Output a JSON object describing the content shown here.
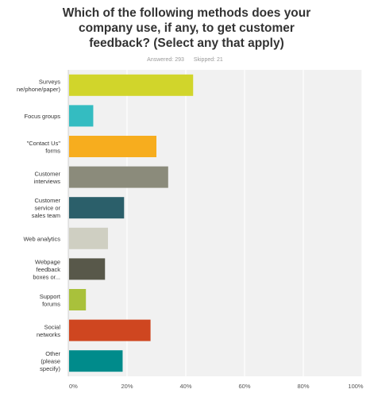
{
  "question": "Which of the following methods does your company use, if any, to get customer feedback? (Select any that apply)",
  "stats": {
    "answered": "Answered: 293",
    "skipped": "Skipped: 21"
  },
  "chart_data": {
    "type": "bar",
    "orientation": "horizontal",
    "title": "Which of the following methods does your company use, if any, to get customer feedback? (Select any that apply)",
    "categories": [
      [
        "Surveys",
        "ne/phone/paper)"
      ],
      [
        "Focus groups"
      ],
      [
        "\"Contact Us\"",
        "forms"
      ],
      [
        "Customer",
        "interviews"
      ],
      [
        "Customer",
        "service or",
        "sales team"
      ],
      [
        "Web analytics"
      ],
      [
        "Webpage",
        "feedback",
        "boxes or..."
      ],
      [
        "Support",
        "forums"
      ],
      [
        "Social",
        "networks"
      ],
      [
        "Other",
        "(please",
        "specify)"
      ]
    ],
    "values": [
      42.5,
      8.5,
      30,
      34,
      19,
      13.5,
      12.5,
      6,
      28,
      18.5
    ],
    "colors": [
      "#d1d52b",
      "#34bcc1",
      "#f7ad1e",
      "#8b8b7b",
      "#2b5f6a",
      "#cfcfc2",
      "#58584a",
      "#a9c13b",
      "#cf4620",
      "#008b8b"
    ],
    "xlim": [
      0,
      100
    ],
    "xticks": [
      "0%",
      "20%",
      "40%",
      "60%",
      "80%",
      "100%"
    ],
    "grid": true
  }
}
